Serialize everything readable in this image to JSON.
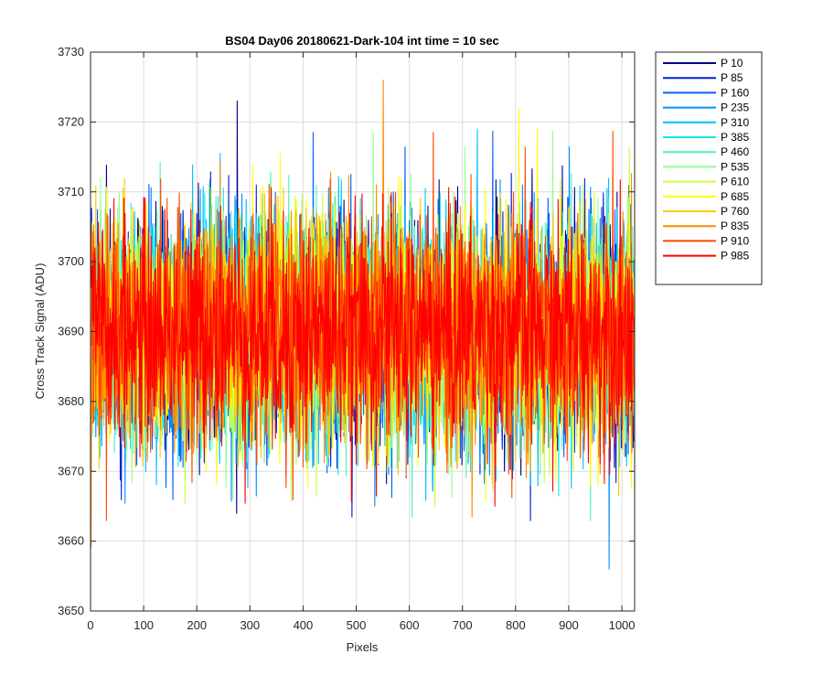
{
  "chart_data": {
    "type": "line",
    "title": "BS04 Day06 20180621-Dark-104 int time = 10 sec",
    "xlabel": "Pixels",
    "ylabel": "Cross Track Signal (ADU)",
    "xlim": [
      0,
      1024
    ],
    "ylim": [
      3650,
      3730
    ],
    "xticks": [
      0,
      100,
      200,
      300,
      400,
      500,
      600,
      700,
      800,
      900,
      1000
    ],
    "yticks": [
      3650,
      3660,
      3670,
      3680,
      3690,
      3700,
      3710,
      3720,
      3730
    ],
    "grid": true,
    "legend_position": "outside-top-right",
    "noise_model": {
      "mean": 3690,
      "std": 8,
      "n_points": 1024
    },
    "series": [
      {
        "name": "P 10",
        "color": "#00008f"
      },
      {
        "name": "P 85",
        "color": "#0020d8"
      },
      {
        "name": "P 160",
        "color": "#0060ff"
      },
      {
        "name": "P 235",
        "color": "#0090ff"
      },
      {
        "name": "P 310",
        "color": "#00bfff"
      },
      {
        "name": "P 385",
        "color": "#10e8e8"
      },
      {
        "name": "P 460",
        "color": "#50f0c0"
      },
      {
        "name": "P 535",
        "color": "#90ff90"
      },
      {
        "name": "P 610",
        "color": "#c8ff40"
      },
      {
        "name": "P 685",
        "color": "#ffff00"
      },
      {
        "name": "P 760",
        "color": "#ffc800"
      },
      {
        "name": "P 835",
        "color": "#ff8c00"
      },
      {
        "name": "P 910",
        "color": "#ff4800"
      },
      {
        "name": "P 985",
        "color": "#ff0000"
      }
    ],
    "notable_values": [
      {
        "series": "P 10",
        "x": 275,
        "y": 3723
      },
      {
        "series": "P 835",
        "x": 550,
        "y": 3726
      },
      {
        "series": "P 685",
        "x": 805,
        "y": 3722
      },
      {
        "series": "P 235",
        "x": 975,
        "y": 3656
      },
      {
        "series": "P 835",
        "x": 0,
        "y": 3659
      }
    ]
  }
}
